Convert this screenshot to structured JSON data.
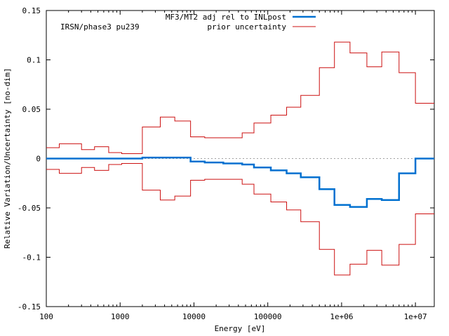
{
  "chart_data": {
    "type": "line",
    "title": "",
    "annotation": "IRSN/phase3 pu239",
    "xlabel": "Energy [eV]",
    "ylabel": "Relative Variation/Uncertainty [no-dim]",
    "xscale": "log",
    "xlim": [
      100,
      18000000
    ],
    "ylim": [
      -0.15,
      0.15
    ],
    "x_ticks": [
      {
        "value": 100,
        "label": "100"
      },
      {
        "value": 1000,
        "label": "1000"
      },
      {
        "value": 10000,
        "label": "10000"
      },
      {
        "value": 100000,
        "label": "100000"
      },
      {
        "value": 1000000,
        "label": "1e+06"
      },
      {
        "value": 10000000,
        "label": "1e+07"
      }
    ],
    "y_ticks": [
      {
        "value": -0.15,
        "label": "-0.15"
      },
      {
        "value": -0.1,
        "label": "-0.1"
      },
      {
        "value": -0.05,
        "label": "-0.05"
      },
      {
        "value": 0,
        "label": "0"
      },
      {
        "value": 0.05,
        "label": "0.05"
      },
      {
        "value": 0.1,
        "label": "0.1"
      },
      {
        "value": 0.15,
        "label": "0.15"
      }
    ],
    "zero_line": true,
    "legend_position": "top-right",
    "bin_edges": [
      100,
      150,
      300,
      450,
      700,
      1050,
      2000,
      3500,
      5500,
      9000,
      14000,
      25000,
      45000,
      65000,
      110000,
      180000,
      280000,
      500000,
      800000,
      1300000,
      2200000,
      3500000,
      6000000,
      10000000,
      18000000
    ],
    "series": [
      {
        "name": "MF3/MT2 adj rel to INLpost",
        "color": "#0070d0",
        "style": "step",
        "values": [
          0,
          0,
          0,
          0,
          0,
          0,
          0.001,
          0.001,
          0.001,
          -0.003,
          -0.004,
          -0.005,
          -0.006,
          -0.009,
          -0.012,
          -0.015,
          -0.019,
          -0.031,
          -0.047,
          -0.049,
          -0.041,
          -0.042,
          -0.015,
          0
        ]
      },
      {
        "name": "prior uncertainty",
        "color": "#cc1010",
        "style": "step",
        "symmetric": true,
        "values": [
          0.011,
          0.015,
          0.009,
          0.012,
          0.006,
          0.005,
          0.032,
          0.042,
          0.038,
          0.022,
          0.021,
          0.021,
          0.026,
          0.036,
          0.044,
          0.052,
          0.064,
          0.092,
          0.118,
          0.107,
          0.093,
          0.108,
          0.087,
          0.056
        ]
      }
    ]
  }
}
